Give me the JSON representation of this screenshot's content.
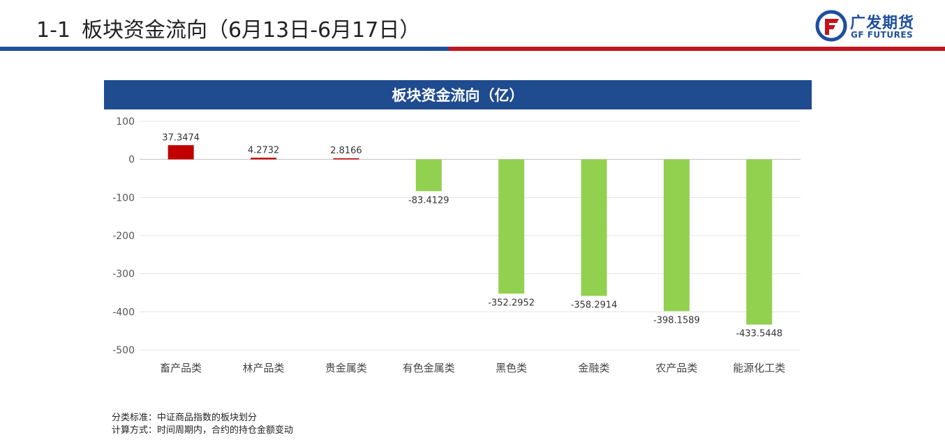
{
  "header": {
    "number": "1-1",
    "title": "板块资金流向（6月13日-6月17日）"
  },
  "logo": {
    "name_cn": "广发期货",
    "name_en": "GF FUTURES",
    "colors": {
      "blue": "#1f4f9c",
      "red": "#c0151e"
    }
  },
  "chart_data": {
    "type": "bar",
    "title": "板块资金流向（亿）",
    "categories": [
      "畜产品类",
      "林产品类",
      "贵金属类",
      "有色金属类",
      "黑色类",
      "金融类",
      "农产品类",
      "能源化工类"
    ],
    "values": [
      37.3474,
      4.2732,
      2.8166,
      -83.4129,
      -352.2952,
      -358.2914,
      -398.1589,
      -433.5448
    ],
    "data_labels": [
      "37.3474",
      "4.2732",
      "2.8166",
      "-83.4129",
      "-352.2952",
      "-358.2914",
      "-398.1589",
      "-433.5448"
    ],
    "ylim": [
      -500,
      100
    ],
    "yticks": [
      100,
      0,
      -100,
      -200,
      -300,
      -400,
      -500
    ],
    "grid": true,
    "colors": {
      "positive": "#c00000",
      "negative": "#92d050",
      "banner": "#1f4b8f"
    }
  },
  "notes": {
    "line1": "分类标准：中证商品指数的板块划分",
    "line2": "计算方式：时间周期内，合约的持仓金额变动"
  }
}
